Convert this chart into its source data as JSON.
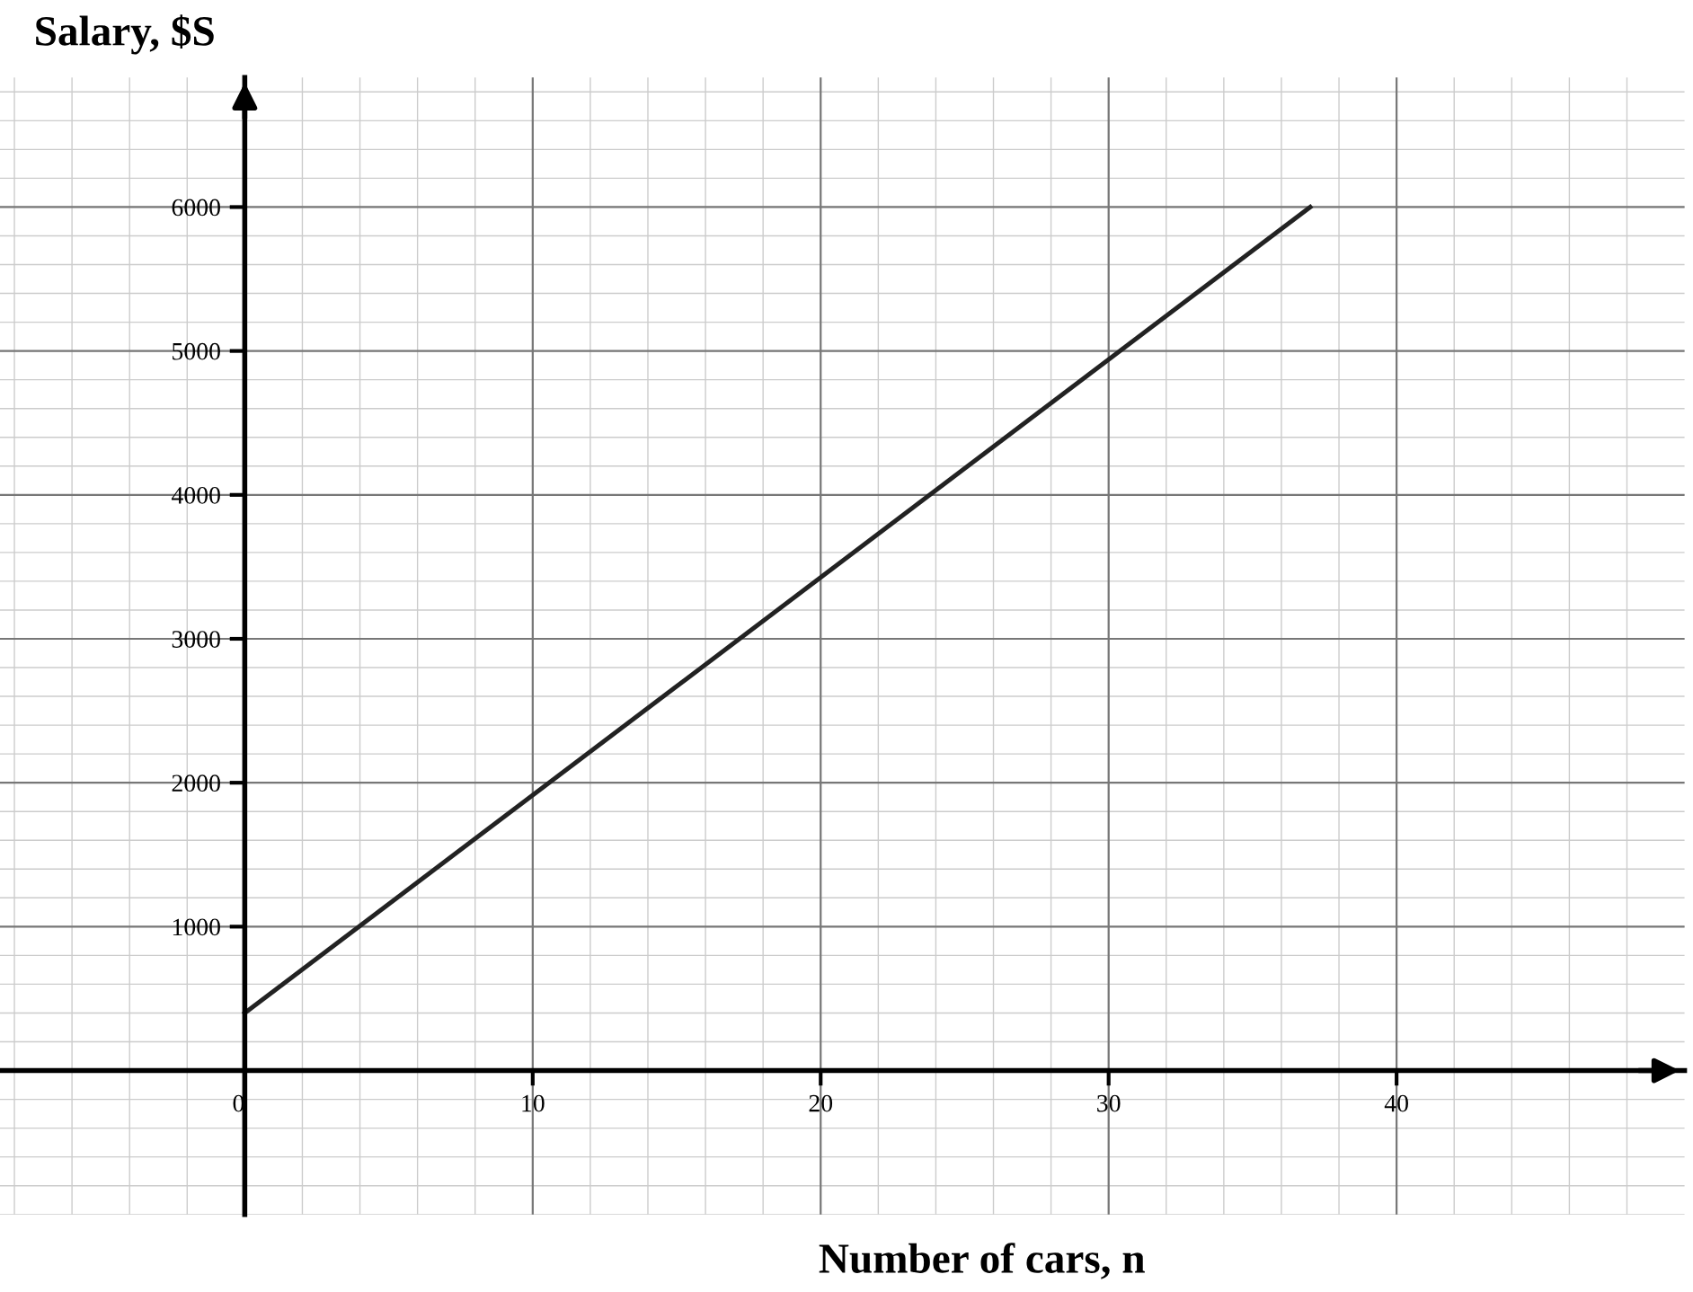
{
  "chart_data": {
    "type": "line",
    "xlabel": "Number of cars, n",
    "ylabel": "Salary, $S",
    "x": [
      0,
      37
    ],
    "series": [
      {
        "color": "#222222",
        "values": [
          400,
          6000
        ]
      }
    ],
    "xlim": [
      -8.5,
      50
    ],
    "ylim": [
      -1000,
      6900
    ],
    "xticks": [
      0,
      10,
      20,
      30,
      40
    ],
    "yticks": [
      1000,
      2000,
      3000,
      4000,
      5000,
      6000
    ],
    "grid": true,
    "marker": "none",
    "line_style": "solid"
  }
}
